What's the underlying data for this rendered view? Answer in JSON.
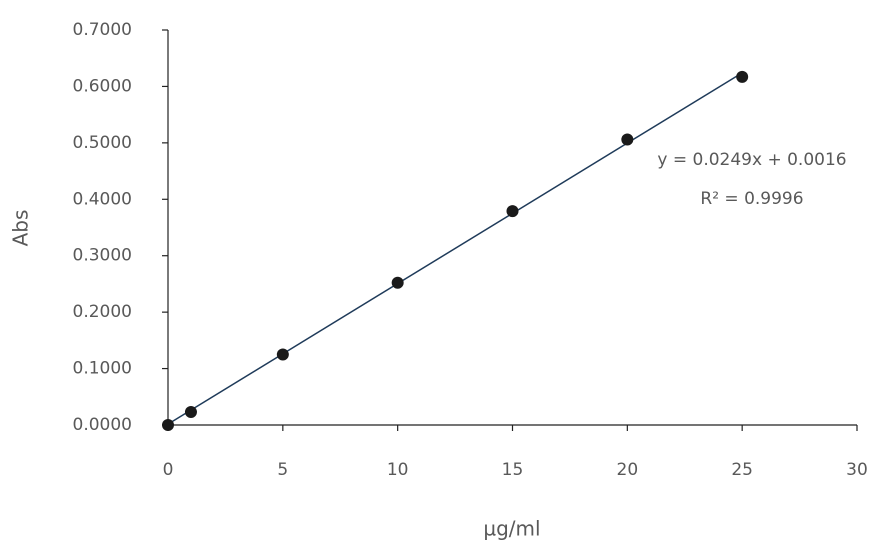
{
  "chart_data": {
    "type": "scatter",
    "x_label": "µg/ml",
    "y_label": "Abs",
    "x": [
      0,
      1,
      5,
      10,
      15,
      20,
      25
    ],
    "series": [
      {
        "color": "#1a1a1a",
        "values": [
          0.0,
          0.023,
          0.125,
          0.252,
          0.379,
          0.506,
          0.617
        ]
      }
    ],
    "xlim": [
      0,
      30
    ],
    "xticks": [
      0,
      5,
      10,
      15,
      20,
      25,
      30
    ],
    "ylim": [
      0,
      0.7
    ],
    "yticks": [
      {
        "value": 0,
        "label": "0.0000"
      },
      {
        "value": 0.1,
        "label": "0.1000"
      },
      {
        "value": 0.2,
        "label": "0.2000"
      },
      {
        "value": 0.3,
        "label": "0.3000"
      },
      {
        "value": 0.4,
        "label": "0.4000"
      },
      {
        "value": 0.5,
        "label": "0.5000"
      },
      {
        "value": 0.6,
        "label": "0.6000"
      },
      {
        "value": 0.7,
        "label": "0.7000"
      }
    ],
    "grid": false,
    "trendline": {
      "slope": 0.0249,
      "intercept": 0.0016,
      "color": "#1f3b5a",
      "label": "y = 0.0249x + 0.0016",
      "r2_label": "R² = 0.9996"
    }
  }
}
